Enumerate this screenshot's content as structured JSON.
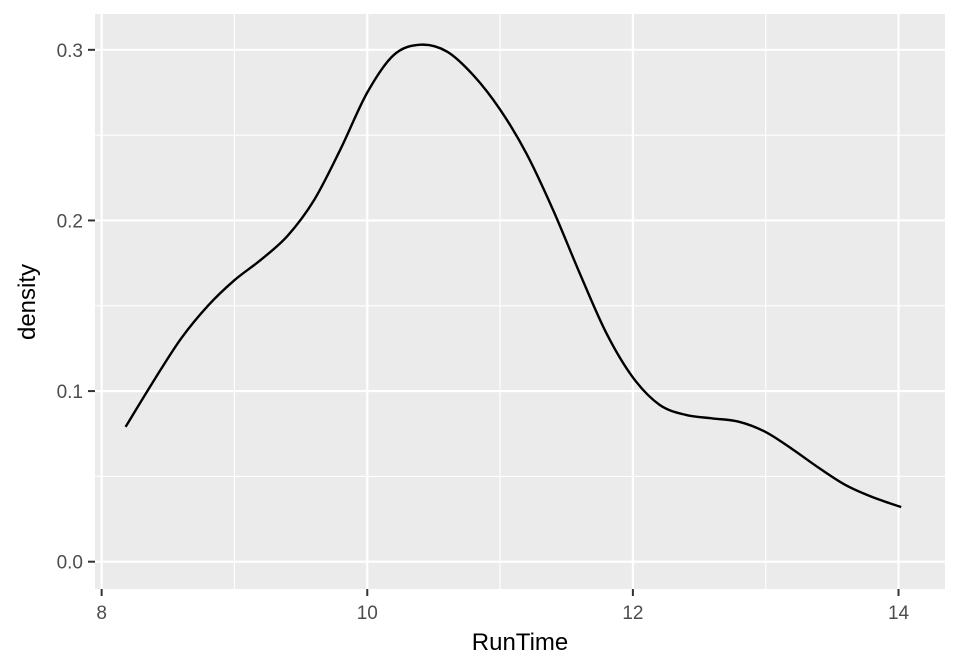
{
  "chart_data": {
    "type": "line",
    "title": "",
    "xlabel": "RunTime",
    "ylabel": "density",
    "xlim": [
      7.95,
      14.35
    ],
    "ylim": [
      -0.016,
      0.321
    ],
    "x_ticks": [
      8,
      10,
      12,
      14
    ],
    "x_tick_labels": [
      "8",
      "10",
      "12",
      "14"
    ],
    "y_ticks": [
      0.0,
      0.1,
      0.2,
      0.3
    ],
    "y_tick_labels": [
      "0.0",
      "0.1",
      "0.2",
      "0.3"
    ],
    "grid": true,
    "series": [
      {
        "name": "density",
        "x": [
          8.18,
          8.4,
          8.6,
          8.8,
          9.0,
          9.2,
          9.4,
          9.6,
          9.8,
          10.0,
          10.2,
          10.4,
          10.6,
          10.8,
          11.0,
          11.2,
          11.4,
          11.6,
          11.8,
          12.0,
          12.2,
          12.4,
          12.6,
          12.8,
          13.0,
          13.2,
          13.4,
          13.6,
          13.8,
          14.02
        ],
        "y": [
          0.079,
          0.107,
          0.131,
          0.15,
          0.165,
          0.177,
          0.191,
          0.212,
          0.242,
          0.275,
          0.297,
          0.303,
          0.299,
          0.285,
          0.265,
          0.239,
          0.206,
          0.169,
          0.134,
          0.108,
          0.092,
          0.086,
          0.084,
          0.082,
          0.076,
          0.066,
          0.055,
          0.045,
          0.038,
          0.032
        ]
      }
    ]
  }
}
